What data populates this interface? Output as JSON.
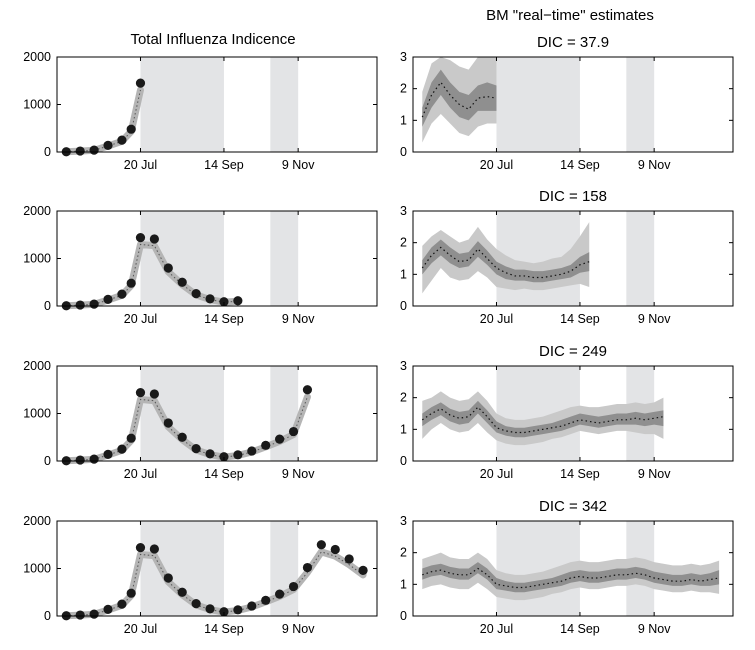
{
  "figure": {
    "left_title": "Total Influenza Indicence",
    "right_title": "BM \"real−time\" estimates"
  },
  "colors": {
    "shade": "#e3e4e6",
    "band_outer": "#c9c9c9",
    "band_inner": "#8f8f8f",
    "dots": "#1a1a1a"
  },
  "chart_data": [
    {
      "type": "scatter",
      "panel": "left-1",
      "title": "Total Influenza Indicence",
      "x_ticks": [
        {
          "x": 20,
          "label": "20 Jul"
        },
        {
          "x": 29,
          "label": "14 Sep"
        },
        {
          "x": 37,
          "label": "9 Nov"
        }
      ],
      "y_ticks": [
        0,
        1000,
        2000
      ],
      "xlim": [
        11,
        45.5
      ],
      "ylim": [
        0,
        2000
      ],
      "grid": false,
      "shaded_x": [
        [
          20,
          29
        ],
        [
          34,
          37
        ]
      ],
      "x": [
        12,
        13.5,
        15,
        16.5,
        18,
        19,
        20
      ],
      "y": [
        5,
        20,
        40,
        140,
        250,
        480,
        1450
      ]
    },
    {
      "type": "scatter",
      "panel": "left-2",
      "title": "",
      "x_ticks": [
        {
          "x": 20,
          "label": "20 Jul"
        },
        {
          "x": 29,
          "label": "14 Sep"
        },
        {
          "x": 37,
          "label": "9 Nov"
        }
      ],
      "y_ticks": [
        0,
        1000,
        2000
      ],
      "xlim": [
        11,
        45.5
      ],
      "ylim": [
        0,
        2000
      ],
      "grid": false,
      "shaded_x": [
        [
          20,
          29
        ],
        [
          34,
          37
        ]
      ],
      "x": [
        12,
        13.5,
        15,
        16.5,
        18,
        19,
        20,
        21.5,
        23,
        24.5,
        26,
        27.5,
        29,
        30.5
      ],
      "y": [
        5,
        20,
        40,
        140,
        250,
        480,
        1440,
        1410,
        800,
        500,
        260,
        150,
        90,
        110
      ]
    },
    {
      "type": "scatter",
      "panel": "left-3",
      "title": "",
      "x_ticks": [
        {
          "x": 20,
          "label": "20 Jul"
        },
        {
          "x": 29,
          "label": "14 Sep"
        },
        {
          "x": 37,
          "label": "9 Nov"
        }
      ],
      "y_ticks": [
        0,
        1000,
        2000
      ],
      "xlim": [
        11,
        45.5
      ],
      "ylim": [
        0,
        2000
      ],
      "grid": false,
      "shaded_x": [
        [
          20,
          29
        ],
        [
          34,
          37
        ]
      ],
      "x": [
        12,
        13.5,
        15,
        16.5,
        18,
        19,
        20,
        21.5,
        23,
        24.5,
        26,
        27.5,
        29,
        30.5,
        32,
        33.5,
        35,
        36.5,
        38
      ],
      "y": [
        5,
        20,
        40,
        140,
        250,
        480,
        1440,
        1410,
        800,
        500,
        260,
        150,
        90,
        130,
        210,
        330,
        460,
        620,
        1500
      ]
    },
    {
      "type": "scatter",
      "panel": "left-4",
      "title": "",
      "x_ticks": [
        {
          "x": 20,
          "label": "20 Jul"
        },
        {
          "x": 29,
          "label": "14 Sep"
        },
        {
          "x": 37,
          "label": "9 Nov"
        }
      ],
      "y_ticks": [
        0,
        1000,
        2000
      ],
      "xlim": [
        11,
        45.5
      ],
      "ylim": [
        0,
        2000
      ],
      "grid": false,
      "shaded_x": [
        [
          20,
          29
        ],
        [
          34,
          37
        ]
      ],
      "x": [
        12,
        13.5,
        15,
        16.5,
        18,
        19,
        20,
        21.5,
        23,
        24.5,
        26,
        27.5,
        29,
        30.5,
        32,
        33.5,
        35,
        36.5,
        38,
        39.5,
        41,
        42.5,
        44
      ],
      "y": [
        5,
        20,
        40,
        140,
        250,
        480,
        1440,
        1410,
        800,
        500,
        260,
        150,
        90,
        130,
        210,
        330,
        460,
        620,
        1020,
        1500,
        1400,
        1200,
        960
      ]
    },
    {
      "type": "area",
      "panel": "right-1",
      "title": "BM \"real−time\" estimates\nDIC = 37.9",
      "x_ticks": [
        {
          "x": 20,
          "label": "20 Jul"
        },
        {
          "x": 29,
          "label": "14 Sep"
        },
        {
          "x": 37,
          "label": "9 Nov"
        }
      ],
      "y_ticks": [
        0,
        1,
        2,
        3
      ],
      "xlim": [
        11,
        45.5
      ],
      "ylim": [
        0,
        3
      ],
      "grid": false,
      "shaded_x": [
        [
          20,
          29
        ],
        [
          34,
          37
        ]
      ],
      "x": [
        12,
        13,
        14,
        15,
        16,
        17,
        18,
        19,
        20
      ],
      "median": [
        1.1,
        1.8,
        2.2,
        1.8,
        1.5,
        1.35,
        1.7,
        1.75,
        1.7
      ],
      "inner": [
        [
          0.8,
          1.4
        ],
        [
          1.4,
          2.2
        ],
        [
          1.8,
          2.6
        ],
        [
          1.4,
          2.2
        ],
        [
          1.1,
          1.9
        ],
        [
          1.0,
          1.8
        ],
        [
          1.3,
          2.1
        ],
        [
          1.3,
          2.2
        ],
        [
          1.3,
          2.1
        ]
      ],
      "outer": [
        [
          0.3,
          1.9
        ],
        [
          0.9,
          2.8
        ],
        [
          1.2,
          3.0
        ],
        [
          0.9,
          2.9
        ],
        [
          0.6,
          2.7
        ],
        [
          0.5,
          2.6
        ],
        [
          0.8,
          3.0
        ],
        [
          0.9,
          3.0
        ],
        [
          0.9,
          3.0
        ]
      ]
    },
    {
      "type": "area",
      "panel": "right-2",
      "title": "DIC = 158",
      "x_ticks": [
        {
          "x": 20,
          "label": "20 Jul"
        },
        {
          "x": 29,
          "label": "14 Sep"
        },
        {
          "x": 37,
          "label": "9 Nov"
        }
      ],
      "y_ticks": [
        0,
        1,
        2,
        3
      ],
      "xlim": [
        11,
        45.5
      ],
      "ylim": [
        0,
        3
      ],
      "grid": false,
      "shaded_x": [
        [
          20,
          29
        ],
        [
          34,
          37
        ]
      ],
      "x": [
        12,
        13,
        14,
        15,
        16,
        17,
        18,
        19,
        20,
        21,
        22,
        23,
        24,
        25,
        26,
        27,
        28,
        29,
        30
      ],
      "median": [
        1.2,
        1.6,
        1.85,
        1.6,
        1.4,
        1.45,
        1.8,
        1.5,
        1.2,
        1.05,
        0.95,
        0.95,
        0.9,
        0.9,
        0.95,
        1.0,
        1.1,
        1.3,
        1.4
      ],
      "inner": [
        [
          1.0,
          1.45
        ],
        [
          1.35,
          1.85
        ],
        [
          1.6,
          2.1
        ],
        [
          1.35,
          1.85
        ],
        [
          1.2,
          1.65
        ],
        [
          1.25,
          1.7
        ],
        [
          1.55,
          2.05
        ],
        [
          1.3,
          1.75
        ],
        [
          1.0,
          1.4
        ],
        [
          0.85,
          1.25
        ],
        [
          0.8,
          1.15
        ],
        [
          0.8,
          1.15
        ],
        [
          0.75,
          1.1
        ],
        [
          0.75,
          1.1
        ],
        [
          0.8,
          1.15
        ],
        [
          0.85,
          1.2
        ],
        [
          0.9,
          1.3
        ],
        [
          1.05,
          1.55
        ],
        [
          1.1,
          1.7
        ]
      ],
      "outer": [
        [
          0.4,
          1.9
        ],
        [
          0.8,
          2.2
        ],
        [
          1.2,
          2.4
        ],
        [
          0.9,
          2.2
        ],
        [
          0.8,
          2.0
        ],
        [
          0.85,
          2.1
        ],
        [
          1.1,
          2.5
        ],
        [
          0.9,
          2.1
        ],
        [
          0.6,
          1.8
        ],
        [
          0.55,
          1.6
        ],
        [
          0.5,
          1.45
        ],
        [
          0.55,
          1.4
        ],
        [
          0.5,
          1.35
        ],
        [
          0.5,
          1.4
        ],
        [
          0.55,
          1.5
        ],
        [
          0.6,
          1.55
        ],
        [
          0.65,
          1.8
        ],
        [
          0.7,
          2.2
        ],
        [
          0.6,
          2.65
        ]
      ]
    },
    {
      "type": "area",
      "panel": "right-3",
      "title": "DIC = 249",
      "x_ticks": [
        {
          "x": 20,
          "label": "20 Jul"
        },
        {
          "x": 29,
          "label": "14 Sep"
        },
        {
          "x": 37,
          "label": "9 Nov"
        }
      ],
      "y_ticks": [
        0,
        1,
        2,
        3
      ],
      "xlim": [
        11,
        45.5
      ],
      "ylim": [
        0,
        3
      ],
      "grid": false,
      "shaded_x": [
        [
          20,
          29
        ],
        [
          34,
          37
        ]
      ],
      "x": [
        12,
        13,
        14,
        15,
        16,
        17,
        18,
        19,
        20,
        21,
        22,
        23,
        24,
        25,
        26,
        27,
        28,
        29,
        30,
        31,
        32,
        33,
        34,
        35,
        36,
        37,
        38
      ],
      "median": [
        1.3,
        1.5,
        1.65,
        1.45,
        1.35,
        1.4,
        1.7,
        1.4,
        1.05,
        0.95,
        0.9,
        0.9,
        0.95,
        1.0,
        1.05,
        1.1,
        1.2,
        1.3,
        1.25,
        1.2,
        1.25,
        1.3,
        1.3,
        1.35,
        1.3,
        1.35,
        1.4
      ],
      "inner": [
        [
          1.1,
          1.5
        ],
        [
          1.3,
          1.7
        ],
        [
          1.45,
          1.85
        ],
        [
          1.25,
          1.65
        ],
        [
          1.15,
          1.55
        ],
        [
          1.2,
          1.6
        ],
        [
          1.5,
          1.9
        ],
        [
          1.2,
          1.6
        ],
        [
          0.9,
          1.25
        ],
        [
          0.8,
          1.1
        ],
        [
          0.75,
          1.05
        ],
        [
          0.75,
          1.05
        ],
        [
          0.8,
          1.1
        ],
        [
          0.85,
          1.15
        ],
        [
          0.9,
          1.2
        ],
        [
          0.95,
          1.3
        ],
        [
          1.05,
          1.4
        ],
        [
          1.15,
          1.5
        ],
        [
          1.1,
          1.45
        ],
        [
          1.05,
          1.4
        ],
        [
          1.1,
          1.45
        ],
        [
          1.15,
          1.5
        ],
        [
          1.15,
          1.5
        ],
        [
          1.15,
          1.55
        ],
        [
          1.1,
          1.5
        ],
        [
          1.15,
          1.55
        ],
        [
          1.1,
          1.6
        ]
      ],
      "outer": [
        [
          0.7,
          1.9
        ],
        [
          1.0,
          2.0
        ],
        [
          1.2,
          2.2
        ],
        [
          1.0,
          2.0
        ],
        [
          0.9,
          1.9
        ],
        [
          0.95,
          1.95
        ],
        [
          1.2,
          2.2
        ],
        [
          0.9,
          1.9
        ],
        [
          0.65,
          1.5
        ],
        [
          0.55,
          1.35
        ],
        [
          0.5,
          1.3
        ],
        [
          0.5,
          1.3
        ],
        [
          0.55,
          1.35
        ],
        [
          0.6,
          1.4
        ],
        [
          0.7,
          1.5
        ],
        [
          0.75,
          1.6
        ],
        [
          0.85,
          1.7
        ],
        [
          0.95,
          1.75
        ],
        [
          0.9,
          1.7
        ],
        [
          0.85,
          1.7
        ],
        [
          0.9,
          1.75
        ],
        [
          0.95,
          1.8
        ],
        [
          0.95,
          1.8
        ],
        [
          0.9,
          1.85
        ],
        [
          0.85,
          1.8
        ],
        [
          0.85,
          1.85
        ],
        [
          0.7,
          2.0
        ]
      ]
    },
    {
      "type": "area",
      "panel": "right-4",
      "title": "DIC = 342",
      "x_ticks": [
        {
          "x": 20,
          "label": "20 Jul"
        },
        {
          "x": 29,
          "label": "14 Sep"
        },
        {
          "x": 37,
          "label": "9 Nov"
        }
      ],
      "y_ticks": [
        0,
        1,
        2,
        3
      ],
      "xlim": [
        11,
        45.5
      ],
      "ylim": [
        0,
        3
      ],
      "grid": false,
      "shaded_x": [
        [
          20,
          29
        ],
        [
          34,
          37
        ]
      ],
      "x": [
        12,
        13,
        14,
        15,
        16,
        17,
        18,
        19,
        20,
        21,
        22,
        23,
        24,
        25,
        26,
        27,
        28,
        29,
        30,
        31,
        32,
        33,
        34,
        35,
        36,
        37,
        38,
        39,
        40,
        41,
        42,
        43,
        44
      ],
      "median": [
        1.3,
        1.4,
        1.45,
        1.35,
        1.3,
        1.3,
        1.5,
        1.3,
        1.0,
        0.95,
        0.9,
        0.9,
        0.95,
        1.0,
        1.05,
        1.1,
        1.2,
        1.25,
        1.2,
        1.2,
        1.25,
        1.3,
        1.3,
        1.35,
        1.3,
        1.2,
        1.15,
        1.1,
        1.1,
        1.15,
        1.1,
        1.15,
        1.2
      ],
      "inner": [
        [
          1.15,
          1.5
        ],
        [
          1.25,
          1.6
        ],
        [
          1.3,
          1.65
        ],
        [
          1.2,
          1.55
        ],
        [
          1.15,
          1.5
        ],
        [
          1.15,
          1.5
        ],
        [
          1.35,
          1.7
        ],
        [
          1.15,
          1.5
        ],
        [
          0.85,
          1.2
        ],
        [
          0.8,
          1.1
        ],
        [
          0.75,
          1.05
        ],
        [
          0.75,
          1.05
        ],
        [
          0.8,
          1.1
        ],
        [
          0.85,
          1.15
        ],
        [
          0.9,
          1.2
        ],
        [
          0.95,
          1.3
        ],
        [
          1.05,
          1.4
        ],
        [
          1.1,
          1.45
        ],
        [
          1.05,
          1.4
        ],
        [
          1.05,
          1.4
        ],
        [
          1.1,
          1.45
        ],
        [
          1.15,
          1.5
        ],
        [
          1.15,
          1.5
        ],
        [
          1.2,
          1.55
        ],
        [
          1.15,
          1.5
        ],
        [
          1.05,
          1.4
        ],
        [
          1.0,
          1.35
        ],
        [
          0.95,
          1.3
        ],
        [
          0.95,
          1.3
        ],
        [
          1.0,
          1.35
        ],
        [
          0.95,
          1.3
        ],
        [
          0.95,
          1.35
        ],
        [
          1.0,
          1.45
        ]
      ],
      "outer": [
        [
          0.85,
          1.8
        ],
        [
          0.95,
          1.9
        ],
        [
          1.0,
          2.0
        ],
        [
          0.9,
          1.85
        ],
        [
          0.85,
          1.8
        ],
        [
          0.85,
          1.8
        ],
        [
          1.05,
          2.0
        ],
        [
          0.85,
          1.8
        ],
        [
          0.6,
          1.45
        ],
        [
          0.55,
          1.35
        ],
        [
          0.5,
          1.3
        ],
        [
          0.5,
          1.3
        ],
        [
          0.55,
          1.35
        ],
        [
          0.6,
          1.4
        ],
        [
          0.7,
          1.5
        ],
        [
          0.75,
          1.6
        ],
        [
          0.85,
          1.7
        ],
        [
          0.9,
          1.75
        ],
        [
          0.85,
          1.7
        ],
        [
          0.85,
          1.7
        ],
        [
          0.9,
          1.75
        ],
        [
          0.95,
          1.8
        ],
        [
          0.95,
          1.8
        ],
        [
          1.0,
          1.85
        ],
        [
          0.95,
          1.8
        ],
        [
          0.85,
          1.7
        ],
        [
          0.8,
          1.65
        ],
        [
          0.75,
          1.6
        ],
        [
          0.75,
          1.6
        ],
        [
          0.8,
          1.65
        ],
        [
          0.75,
          1.6
        ],
        [
          0.75,
          1.65
        ],
        [
          0.7,
          1.75
        ]
      ]
    }
  ]
}
